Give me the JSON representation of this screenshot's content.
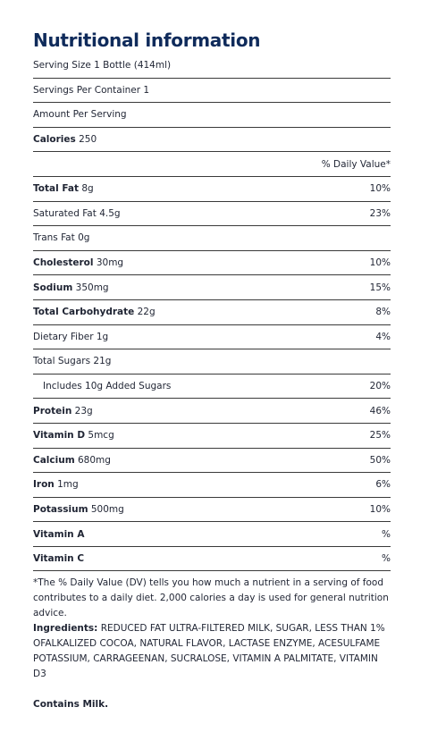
{
  "header": {
    "title": "Nutritional information"
  },
  "rows": [
    {
      "text": "Serving Size 1 Bottle (414ml)"
    },
    {
      "text": "Servings Per Container 1"
    },
    {
      "text": "Amount Per Serving"
    },
    {
      "name": "Calories",
      "amount": "250"
    },
    {
      "dv": "% Daily Value*"
    },
    {
      "name": "Total Fat",
      "amount": "8g",
      "dv": "10%"
    },
    {
      "name": "Saturated Fat",
      "amount": "4.5g",
      "dv": "23%"
    },
    {
      "name": "Trans Fat",
      "amount": "0g"
    },
    {
      "name": "Cholesterol",
      "amount": "30mg",
      "dv": "10%"
    },
    {
      "name": "Sodium",
      "amount": "350mg",
      "dv": "15%"
    },
    {
      "name": "Total Carbohydrate",
      "amount": "22g",
      "dv": "8%"
    },
    {
      "name": "Dietary Fiber",
      "amount": "1g",
      "dv": "4%"
    },
    {
      "name": "Total Sugars",
      "amount": "21g"
    },
    {
      "text": "Includes 10g Added Sugars",
      "dv": "20%"
    },
    {
      "name": "Protein",
      "amount": "23g",
      "dv": "46%"
    },
    {
      "name": "Vitamin D",
      "amount": "5mcg",
      "dv": "25%"
    },
    {
      "name": "Calcium",
      "amount": "680mg",
      "dv": "50%"
    },
    {
      "name": "Iron",
      "amount": "1mg",
      "dv": "6%"
    },
    {
      "name": "Potassium",
      "amount": "500mg",
      "dv": "10%"
    },
    {
      "name": "Vitamin A",
      "dv": "%"
    },
    {
      "name": "Vitamin C",
      "dv": "%"
    }
  ],
  "footnote": "*The % Daily Value (DV) tells you how much a nutrient in a serving of food contributes to a daily diet. 2,000 calories a day is used for general nutrition advice.",
  "ingredients": {
    "label": "Ingredients:",
    "text": "REDUCED FAT ULTRA-FILTERED MILK, SUGAR, LESS THAN 1% OFALKALIZED COCOA, NATURAL FLAVOR, LACTASE ENZYME, ACESULFAME POTASSIUM, CARRAGEENAN, SUCRALOSE, VITAMIN A PALMITATE, VITAMIN D3"
  },
  "contains": "Contains Milk."
}
